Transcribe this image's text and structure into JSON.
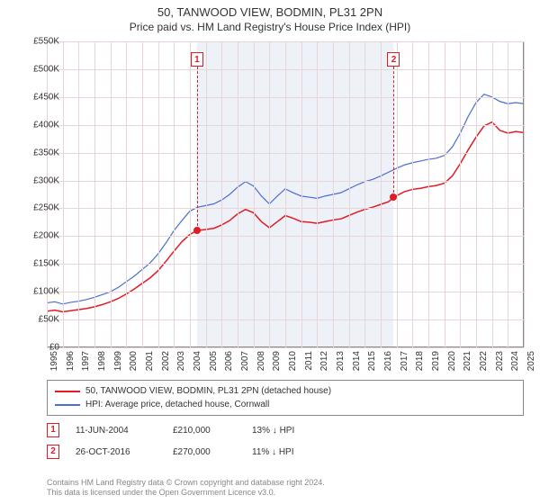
{
  "title": "50, TANWOOD VIEW, BODMIN, PL31 2PN",
  "subtitle": "Price paid vs. HM Land Registry's House Price Index (HPI)",
  "chart": {
    "type": "line",
    "background_color": "#ffffff",
    "grid_color": "#e8d5d5",
    "shade_color": "#eef1f8",
    "border_color": "#888888",
    "y": {
      "min": 0,
      "max": 550000,
      "step": 50000,
      "label_prefix": "£",
      "label_suffix": "K",
      "label_divide": 1000,
      "fontsize": 10
    },
    "x": {
      "min": 1995,
      "max": 2025,
      "step": 1,
      "fontsize": 10,
      "rotate": -90
    },
    "shade_ranges": [
      [
        2004.45,
        2016.82
      ]
    ],
    "series": [
      {
        "name": "HPI: Average price, detached house, Cornwall",
        "color": "#4a6fd4",
        "line_width": 1.2,
        "data": [
          [
            1995,
            80000
          ],
          [
            1995.5,
            82000
          ],
          [
            1996,
            78000
          ],
          [
            1996.5,
            81000
          ],
          [
            1997,
            83000
          ],
          [
            1997.5,
            86000
          ],
          [
            1998,
            90000
          ],
          [
            1998.5,
            95000
          ],
          [
            1999,
            100000
          ],
          [
            1999.5,
            108000
          ],
          [
            2000,
            118000
          ],
          [
            2000.5,
            128000
          ],
          [
            2001,
            140000
          ],
          [
            2001.5,
            152000
          ],
          [
            2002,
            168000
          ],
          [
            2002.5,
            188000
          ],
          [
            2003,
            210000
          ],
          [
            2003.5,
            228000
          ],
          [
            2004,
            245000
          ],
          [
            2004.5,
            252000
          ],
          [
            2005,
            255000
          ],
          [
            2005.5,
            258000
          ],
          [
            2006,
            265000
          ],
          [
            2006.5,
            275000
          ],
          [
            2007,
            288000
          ],
          [
            2007.5,
            298000
          ],
          [
            2008,
            290000
          ],
          [
            2008.5,
            272000
          ],
          [
            2009,
            258000
          ],
          [
            2009.5,
            272000
          ],
          [
            2010,
            285000
          ],
          [
            2010.5,
            278000
          ],
          [
            2011,
            272000
          ],
          [
            2011.5,
            270000
          ],
          [
            2012,
            268000
          ],
          [
            2012.5,
            272000
          ],
          [
            2013,
            275000
          ],
          [
            2013.5,
            278000
          ],
          [
            2014,
            285000
          ],
          [
            2014.5,
            292000
          ],
          [
            2015,
            298000
          ],
          [
            2015.5,
            302000
          ],
          [
            2016,
            308000
          ],
          [
            2016.5,
            315000
          ],
          [
            2017,
            322000
          ],
          [
            2017.5,
            328000
          ],
          [
            2018,
            332000
          ],
          [
            2018.5,
            335000
          ],
          [
            2019,
            338000
          ],
          [
            2019.5,
            340000
          ],
          [
            2020,
            345000
          ],
          [
            2020.5,
            360000
          ],
          [
            2021,
            385000
          ],
          [
            2021.5,
            415000
          ],
          [
            2022,
            440000
          ],
          [
            2022.5,
            455000
          ],
          [
            2023,
            450000
          ],
          [
            2023.5,
            442000
          ],
          [
            2024,
            438000
          ],
          [
            2024.5,
            440000
          ],
          [
            2025,
            438000
          ]
        ]
      },
      {
        "name": "50, TANWOOD VIEW, BODMIN, PL31 2PN (detached house)",
        "color": "#e01b24",
        "line_width": 1.5,
        "data": [
          [
            1995,
            65000
          ],
          [
            1995.5,
            67000
          ],
          [
            1996,
            64000
          ],
          [
            1996.5,
            66000
          ],
          [
            1997,
            68000
          ],
          [
            1997.5,
            70000
          ],
          [
            1998,
            73000
          ],
          [
            1998.5,
            77000
          ],
          [
            1999,
            82000
          ],
          [
            1999.5,
            88000
          ],
          [
            2000,
            96000
          ],
          [
            2000.5,
            105000
          ],
          [
            2001,
            115000
          ],
          [
            2001.5,
            125000
          ],
          [
            2002,
            138000
          ],
          [
            2002.5,
            155000
          ],
          [
            2003,
            173000
          ],
          [
            2003.5,
            190000
          ],
          [
            2004,
            203000
          ],
          [
            2004.45,
            210000
          ],
          [
            2005,
            212000
          ],
          [
            2005.5,
            214000
          ],
          [
            2006,
            220000
          ],
          [
            2006.5,
            228000
          ],
          [
            2007,
            240000
          ],
          [
            2007.5,
            248000
          ],
          [
            2008,
            242000
          ],
          [
            2008.5,
            226000
          ],
          [
            2009,
            215000
          ],
          [
            2009.5,
            226000
          ],
          [
            2010,
            237000
          ],
          [
            2010.5,
            232000
          ],
          [
            2011,
            226000
          ],
          [
            2011.5,
            225000
          ],
          [
            2012,
            223000
          ],
          [
            2012.5,
            226000
          ],
          [
            2013,
            229000
          ],
          [
            2013.5,
            231000
          ],
          [
            2014,
            237000
          ],
          [
            2014.5,
            243000
          ],
          [
            2015,
            248000
          ],
          [
            2015.5,
            252000
          ],
          [
            2016,
            257000
          ],
          [
            2016.5,
            262000
          ],
          [
            2016.82,
            270000
          ],
          [
            2017.5,
            280000
          ],
          [
            2018,
            284000
          ],
          [
            2018.5,
            286000
          ],
          [
            2019,
            289000
          ],
          [
            2019.5,
            291000
          ],
          [
            2020,
            295000
          ],
          [
            2020.5,
            308000
          ],
          [
            2021,
            330000
          ],
          [
            2021.5,
            355000
          ],
          [
            2022,
            378000
          ],
          [
            2022.5,
            398000
          ],
          [
            2023,
            405000
          ],
          [
            2023.5,
            390000
          ],
          [
            2024,
            385000
          ],
          [
            2024.5,
            388000
          ],
          [
            2025,
            386000
          ]
        ]
      }
    ],
    "markers": [
      {
        "n": "1",
        "x": 2004.45,
        "y_box": 505000,
        "point_y": 210000,
        "color": "#e01b24"
      },
      {
        "n": "2",
        "x": 2016.82,
        "y_box": 505000,
        "point_y": 270000,
        "color": "#e01b24"
      }
    ]
  },
  "legend": {
    "series_labels": [
      "50, TANWOOD VIEW, BODMIN, PL31 2PN (detached house)",
      "HPI: Average price, detached house, Cornwall"
    ],
    "series_colors": [
      "#e01b24",
      "#4a6fd4"
    ]
  },
  "sales": [
    {
      "n": "1",
      "date": "11-JUN-2004",
      "price": "£210,000",
      "diff": "13% ↓ HPI",
      "color": "#e01b24"
    },
    {
      "n": "2",
      "date": "26-OCT-2016",
      "price": "£270,000",
      "diff": "11% ↓ HPI",
      "color": "#e01b24"
    }
  ],
  "footer": {
    "line1": "Contains HM Land Registry data © Crown copyright and database right 2024.",
    "line2": "This data is licensed under the Open Government Licence v3.0."
  }
}
